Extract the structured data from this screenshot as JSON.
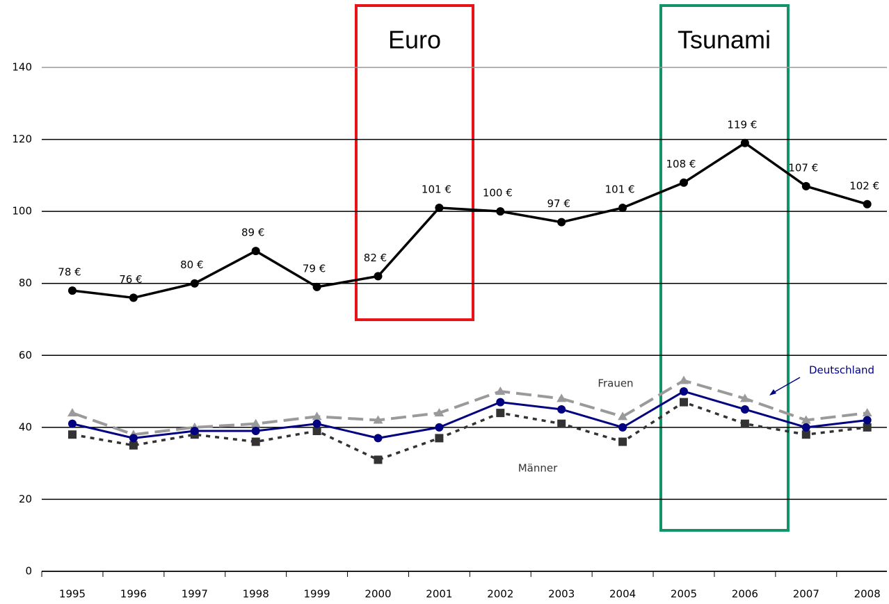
{
  "chart_data": {
    "type": "line",
    "categories": [
      "1995",
      "1996",
      "1997",
      "1998",
      "1999",
      "2000",
      "2001",
      "2002",
      "2003",
      "2004",
      "2005",
      "2006",
      "2007",
      "2008"
    ],
    "series": [
      {
        "color": "#000000",
        "values": [
          78,
          76,
          80,
          89,
          79,
          82,
          101,
          100,
          97,
          101,
          108,
          119,
          107,
          102
        ],
        "value_labels": [
          "78 €",
          "76 €",
          "80 €",
          "89 €",
          "79 €",
          "82 €",
          "101 €",
          "100 €",
          "97 €",
          "101 €",
          "108 €",
          "119 €",
          "107 €",
          "102 €"
        ]
      },
      {
        "name": "Frauen",
        "color": "#9a9a9a",
        "values": [
          44,
          38,
          40,
          41,
          43,
          42,
          44,
          50,
          48,
          43,
          53,
          48,
          42,
          44
        ]
      },
      {
        "name": "Männer",
        "color": "#333333",
        "values": [
          38,
          35,
          38,
          36,
          39,
          31,
          37,
          44,
          41,
          36,
          47,
          41,
          38,
          40
        ]
      },
      {
        "name": "Deutschland",
        "color": "#000080",
        "values": [
          41,
          37,
          39,
          39,
          41,
          37,
          40,
          47,
          45,
          40,
          50,
          45,
          40,
          42
        ]
      }
    ],
    "annotations": [
      "Euro",
      "Tsunami"
    ],
    "ylim": [
      0,
      140
    ],
    "yticks": [
      0,
      20,
      40,
      60,
      80,
      100,
      120,
      140
    ],
    "grid": true
  }
}
